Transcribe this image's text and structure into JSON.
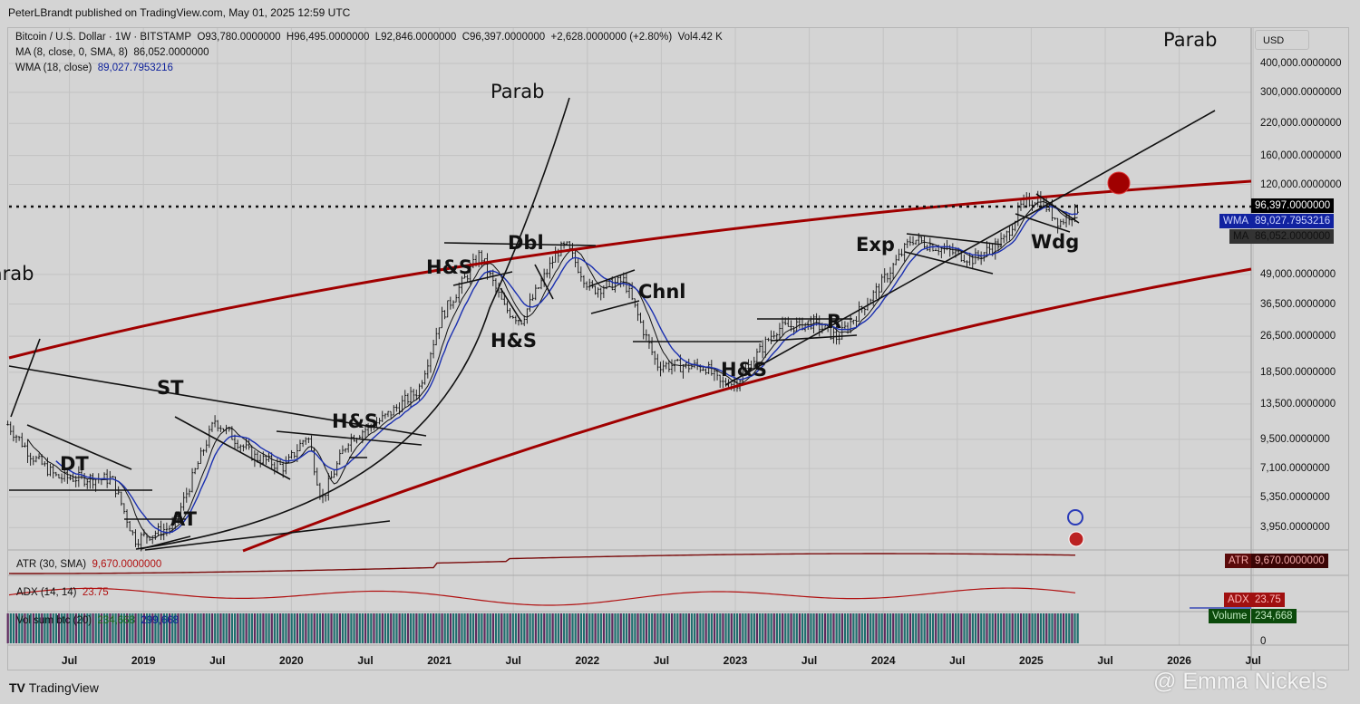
{
  "publisher": "PeterLBrandt published on TradingView.com, May 01, 2025 12:59 UTC",
  "legend": {
    "symbol": "Bitcoin / U.S. Dollar · 1W · BITSTAMP",
    "open": "O93,780.0000000",
    "high": "H96,495.0000000",
    "low": "L92,846.0000000",
    "close": "C96,397.0000000",
    "change": "+2,628.0000000 (+2.80%)",
    "vol": "Vol4.42 K",
    "ma_label": "MA (8, close, 0, SMA, 8)",
    "ma_value": "86,052.0000000",
    "wma_label": "WMA (18, close)",
    "wma_value": "89,027.7953216"
  },
  "currency": "USD",
  "annotations": {
    "top_right_title": "Parab",
    "parab_mid": "Parab",
    "parab_left": "Parab",
    "patterns": [
      "DT",
      "AT",
      "ST",
      "H&S",
      "H&S",
      "Dbl",
      "H&S",
      "Chnl",
      "H&S",
      "R",
      "Exp",
      "Wdg"
    ]
  },
  "price_tags": {
    "last": "96,397.0000000",
    "wma_name": "WMA",
    "wma": "89,027.7953216",
    "ma_name": "MA",
    "ma": "86,052.0000000"
  },
  "indicators": {
    "atr_label": "ATR (30, SMA)",
    "atr_value": "9,670.0000000",
    "atr_tag": "ATR",
    "adx_label": "ADX (14, 14)",
    "adx_value": "23.75",
    "adx_tag": "ADX",
    "vol_label": "Vol sum btc (20)",
    "vol_value1": "234,668",
    "vol_value2": "299,668",
    "vol_tag": "Volume",
    "vol_tag_value": "234,668",
    "vol_axis_zero": "0"
  },
  "footer": {
    "brand": "TradingView",
    "watermark": "@ Emma Nickels"
  },
  "colors": {
    "wma": "#1a2fb0",
    "ma": "#111111",
    "channel": "#a00000",
    "target_dot": "#a00000",
    "vol_up": "#1f6e6e",
    "vol_down": "#5e2a5e"
  },
  "chart_data": {
    "type": "ohlc",
    "title": "Bitcoin / U.S. Dollar · 1W · BITSTAMP",
    "y_scale": "log",
    "ylim": [
      3000,
      480000
    ],
    "grid": true,
    "y_ticks": [
      "400,000.0000000",
      "300,000.0000000",
      "220,000.0000000",
      "160,000.0000000",
      "120,000.0000000",
      "49,000.0000000",
      "36,500.0000000",
      "26,500.0000000",
      "18,500.0000000",
      "13,500.0000000",
      "9,500.0000000",
      "7,100.0000000",
      "5,350.0000000",
      "3,950.0000000"
    ],
    "y_tick_values": [
      400000,
      300000,
      220000,
      160000,
      120000,
      49000,
      36500,
      26500,
      18500,
      13500,
      9500,
      7100,
      5350,
      3950
    ],
    "x_ticks": [
      "Jul",
      "2019",
      "Jul",
      "2020",
      "Jul",
      "2021",
      "Jul",
      "2022",
      "Jul",
      "2023",
      "Jul",
      "2024",
      "Jul",
      "2025",
      "Jul",
      "2026",
      "Jul"
    ],
    "x_tick_dates": [
      "2018-07-01",
      "2019-01-01",
      "2019-07-01",
      "2020-01-01",
      "2020-07-01",
      "2021-01-01",
      "2021-07-01",
      "2022-01-01",
      "2022-07-01",
      "2023-01-01",
      "2023-07-01",
      "2024-01-01",
      "2024-07-01",
      "2025-01-01",
      "2025-07-01",
      "2026-01-01",
      "2026-07-01"
    ],
    "approx_close_path": [
      [
        "2018-02-01",
        11000
      ],
      [
        "2018-04-01",
        8000
      ],
      [
        "2018-06-01",
        6500
      ],
      [
        "2018-10-15",
        6400
      ],
      [
        "2018-12-10",
        3500
      ],
      [
        "2019-03-15",
        4000
      ],
      [
        "2019-06-25",
        11500
      ],
      [
        "2019-09-30",
        8000
      ],
      [
        "2019-12-15",
        7200
      ],
      [
        "2020-02-10",
        10000
      ],
      [
        "2020-03-15",
        5200
      ],
      [
        "2020-05-20",
        9500
      ],
      [
        "2020-08-15",
        11700
      ],
      [
        "2020-11-10",
        15500
      ],
      [
        "2021-01-05",
        32000
      ],
      [
        "2021-04-10",
        60000
      ],
      [
        "2021-06-10",
        35000
      ],
      [
        "2021-07-20",
        31000
      ],
      [
        "2021-10-20",
        62000
      ],
      [
        "2021-11-10",
        65000
      ],
      [
        "2022-01-10",
        42000
      ],
      [
        "2022-04-01",
        46000
      ],
      [
        "2022-06-20",
        20000
      ],
      [
        "2022-10-20",
        19500
      ],
      [
        "2022-11-25",
        16500
      ],
      [
        "2023-01-05",
        16800
      ],
      [
        "2023-04-10",
        28500
      ],
      [
        "2023-07-10",
        30500
      ],
      [
        "2023-09-10",
        26000
      ],
      [
        "2023-12-20",
        43000
      ],
      [
        "2024-03-10",
        70000
      ],
      [
        "2024-08-10",
        57000
      ],
      [
        "2024-10-25",
        69000
      ],
      [
        "2024-12-10",
        99000
      ],
      [
        "2025-01-20",
        105000
      ],
      [
        "2025-03-10",
        82000
      ],
      [
        "2025-04-30",
        96397
      ]
    ],
    "last_close": 96397,
    "target_marker_price": 120000
  }
}
